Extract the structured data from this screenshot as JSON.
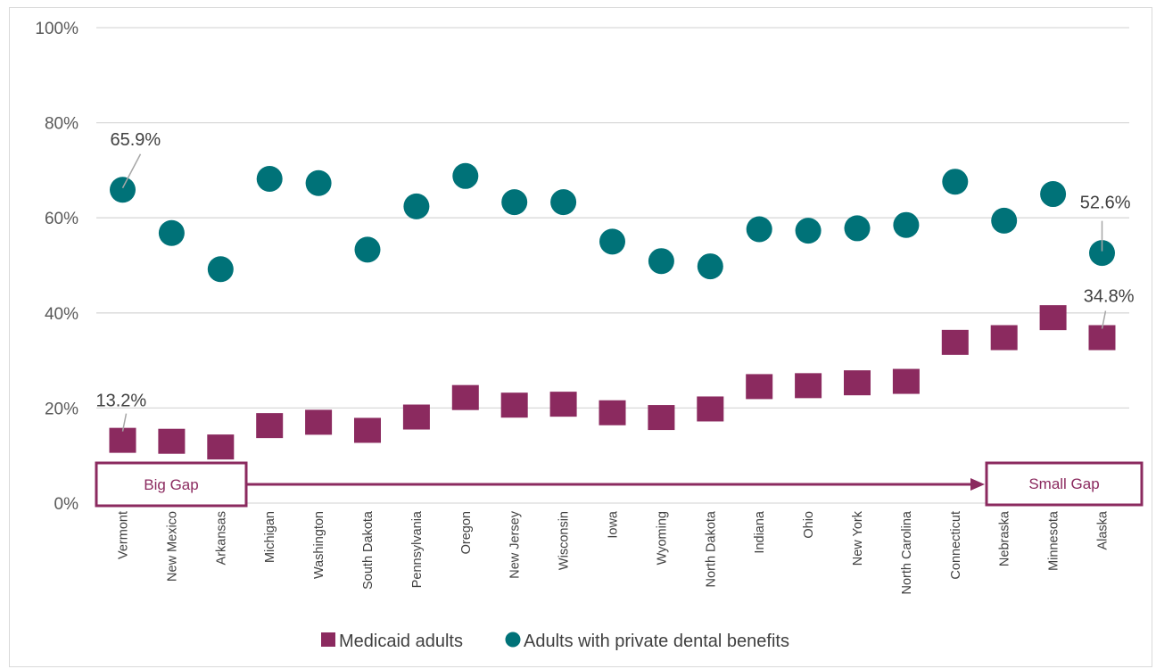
{
  "chart_data": {
    "type": "scatter",
    "categories": [
      "Vermont",
      "New Mexico",
      "Arkansas",
      "Michigan",
      "Washington",
      "South Dakota",
      "Pennsylvania",
      "Oregon",
      "New Jersey",
      "Wisconsin",
      "Iowa",
      "Wyoming",
      "North Dakota",
      "Indiana",
      "Ohio",
      "New York",
      "North Carolina",
      "Connecticut",
      "Nebraska",
      "Minnesota",
      "Alaska"
    ],
    "series": [
      {
        "name": "Medicaid adults",
        "marker": "square",
        "color": "#8b2a5f",
        "values": [
          13.2,
          13.0,
          11.8,
          16.3,
          17.0,
          15.3,
          18.1,
          22.2,
          20.6,
          20.8,
          19.0,
          18.0,
          19.8,
          24.5,
          24.7,
          25.3,
          25.6,
          33.8,
          34.8,
          39.0,
          34.8
        ]
      },
      {
        "name": "Adults with private dental benefits",
        "marker": "circle",
        "color": "#007278",
        "values": [
          65.9,
          56.8,
          49.2,
          68.2,
          67.3,
          53.3,
          62.4,
          68.8,
          63.3,
          63.3,
          55.0,
          50.9,
          49.8,
          57.6,
          57.3,
          57.8,
          58.5,
          67.6,
          59.4,
          65.0,
          52.6
        ]
      }
    ],
    "ylim": [
      0,
      100
    ],
    "yticks": [
      "0%",
      "20%",
      "40%",
      "60%",
      "80%",
      "100%"
    ],
    "grid": true,
    "legend_position": "bottom",
    "annotations": [
      {
        "category": "Vermont",
        "series": "Adults with private dental benefits",
        "text": "65.9%"
      },
      {
        "category": "Alaska",
        "series": "Adults with private dental benefits",
        "text": "52.6%"
      },
      {
        "category": "Vermont",
        "series": "Medicaid adults",
        "text": "13.2%"
      },
      {
        "category": "Alaska",
        "series": "Medicaid adults",
        "text": "34.8%"
      }
    ],
    "gap_labels": {
      "left": "Big Gap",
      "right": "Small Gap"
    },
    "accent_color": "#8b2a5f",
    "grid_color": "#d9d9d9"
  }
}
